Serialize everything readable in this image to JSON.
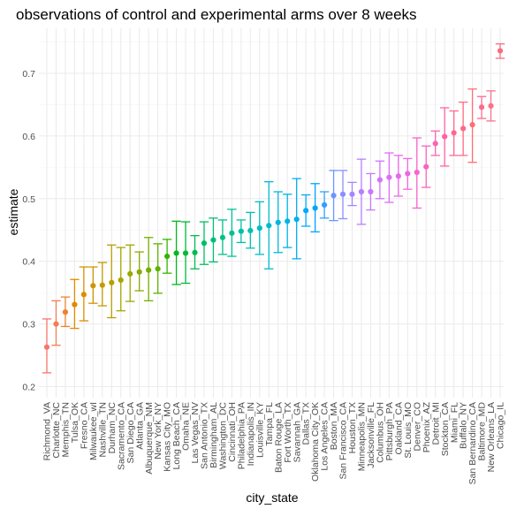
{
  "chart_data": {
    "type": "scatter",
    "subtype": "point-range with error bars",
    "title": "observations of control and experimental arms over 8 weeks",
    "xlabel": "city_state",
    "ylabel": "estimate",
    "ylim": [
      0.2,
      0.75
    ],
    "yticks": [
      "0.2",
      "0.3",
      "0.4",
      "0.5",
      "0.6",
      "0.7"
    ],
    "grid": true,
    "legend": "none",
    "theme": "minimal",
    "points": [
      {
        "city": "Richmond_VA",
        "estimate": 0.263,
        "lower": 0.222,
        "upper": 0.308,
        "color": "#F8766D"
      },
      {
        "city": "Charlotte_NC",
        "estimate": 0.3,
        "lower": 0.266,
        "upper": 0.337,
        "color": "#F27D52"
      },
      {
        "city": "Memphis_TN",
        "estimate": 0.319,
        "lower": 0.296,
        "upper": 0.343,
        "color": "#EA8331"
      },
      {
        "city": "Tulsa_OK",
        "estimate": 0.331,
        "lower": 0.293,
        "upper": 0.371,
        "color": "#E38900"
      },
      {
        "city": "Fresno_CA",
        "estimate": 0.347,
        "lower": 0.305,
        "upper": 0.391,
        "color": "#DA8F00"
      },
      {
        "city": "Milwaukee_wI",
        "estimate": 0.361,
        "lower": 0.333,
        "upper": 0.391,
        "color": "#CF9400"
      },
      {
        "city": "Nashville_TN",
        "estimate": 0.362,
        "lower": 0.329,
        "upper": 0.398,
        "color": "#C49A00"
      },
      {
        "city": "Durham_NC",
        "estimate": 0.366,
        "lower": 0.31,
        "upper": 0.426,
        "color": "#B79F00"
      },
      {
        "city": "Sacramento_CA",
        "estimate": 0.37,
        "lower": 0.321,
        "upper": 0.422,
        "color": "#A9A400"
      },
      {
        "city": "San Diego_CA",
        "estimate": 0.38,
        "lower": 0.336,
        "upper": 0.426,
        "color": "#9AA800"
      },
      {
        "city": "Atlanta_GA",
        "estimate": 0.383,
        "lower": 0.353,
        "upper": 0.415,
        "color": "#8AAB00"
      },
      {
        "city": "Albuquerque_NM",
        "estimate": 0.386,
        "lower": 0.337,
        "upper": 0.438,
        "color": "#75AF00"
      },
      {
        "city": "New York_NY",
        "estimate": 0.388,
        "lower": 0.349,
        "upper": 0.428,
        "color": "#5BB300"
      },
      {
        "city": "Kansas City_MO",
        "estimate": 0.408,
        "lower": 0.381,
        "upper": 0.435,
        "color": "#31B600"
      },
      {
        "city": "Long Beach_CA",
        "estimate": 0.413,
        "lower": 0.363,
        "upper": 0.464,
        "color": "#00B81F"
      },
      {
        "city": "Omaha_NE",
        "estimate": 0.413,
        "lower": 0.365,
        "upper": 0.463,
        "color": "#00BA38"
      },
      {
        "city": "Las Vegas_NV",
        "estimate": 0.414,
        "lower": 0.388,
        "upper": 0.441,
        "color": "#00BC4E"
      },
      {
        "city": "San Antonio_TX",
        "estimate": 0.429,
        "lower": 0.395,
        "upper": 0.463,
        "color": "#00BE62"
      },
      {
        "city": "Birmingham_AL",
        "estimate": 0.434,
        "lower": 0.399,
        "upper": 0.469,
        "color": "#00BF74"
      },
      {
        "city": "Washington_DC",
        "estimate": 0.438,
        "lower": 0.411,
        "upper": 0.466,
        "color": "#00C085"
      },
      {
        "city": "Cincinnati_OH",
        "estimate": 0.445,
        "lower": 0.408,
        "upper": 0.483,
        "color": "#00C096"
      },
      {
        "city": "Philadelphia_PA",
        "estimate": 0.448,
        "lower": 0.43,
        "upper": 0.466,
        "color": "#00C0A5"
      },
      {
        "city": "Indianapolis_IN",
        "estimate": 0.449,
        "lower": 0.421,
        "upper": 0.478,
        "color": "#00BFB4"
      },
      {
        "city": "Louisville_KY",
        "estimate": 0.453,
        "lower": 0.411,
        "upper": 0.495,
        "color": "#00BDC2"
      },
      {
        "city": "Tampa_FL",
        "estimate": 0.457,
        "lower": 0.388,
        "upper": 0.527,
        "color": "#00BBCF"
      },
      {
        "city": "Baton Rouge_LA",
        "estimate": 0.462,
        "lower": 0.414,
        "upper": 0.511,
        "color": "#00B8DC"
      },
      {
        "city": "Fort Worth_TX",
        "estimate": 0.464,
        "lower": 0.422,
        "upper": 0.507,
        "color": "#00B4E7"
      },
      {
        "city": "Savannah_GA",
        "estimate": 0.467,
        "lower": 0.404,
        "upper": 0.532,
        "color": "#00AFF1"
      },
      {
        "city": "Dallas_TX",
        "estimate": 0.481,
        "lower": 0.456,
        "upper": 0.506,
        "color": "#00AAFA"
      },
      {
        "city": "Oklahoma City_OK",
        "estimate": 0.485,
        "lower": 0.447,
        "upper": 0.524,
        "color": "#00A4FF"
      },
      {
        "city": "Los Angeles_CA",
        "estimate": 0.49,
        "lower": 0.469,
        "upper": 0.511,
        "color": "#339EFF"
      },
      {
        "city": "Boston_MA",
        "estimate": 0.505,
        "lower": 0.465,
        "upper": 0.545,
        "color": "#6B96FF"
      },
      {
        "city": "San Francisco_CA",
        "estimate": 0.507,
        "lower": 0.468,
        "upper": 0.545,
        "color": "#8C8EFF"
      },
      {
        "city": "Houston_TX",
        "estimate": 0.507,
        "lower": 0.489,
        "upper": 0.526,
        "color": "#A487FF"
      },
      {
        "city": "Minneapolis_MN",
        "estimate": 0.511,
        "lower": 0.459,
        "upper": 0.563,
        "color": "#B67FFF"
      },
      {
        "city": "Jacksonville_FL",
        "estimate": 0.511,
        "lower": 0.482,
        "upper": 0.54,
        "color": "#C678FF"
      },
      {
        "city": "Columbus_OH",
        "estimate": 0.53,
        "lower": 0.5,
        "upper": 0.56,
        "color": "#D372FF"
      },
      {
        "city": "Pittsburgh_PA",
        "estimate": 0.534,
        "lower": 0.494,
        "upper": 0.573,
        "color": "#DE6DF5"
      },
      {
        "city": "Oakland_CA",
        "estimate": 0.536,
        "lower": 0.504,
        "upper": 0.569,
        "color": "#E769EA"
      },
      {
        "city": "St. Louis_MO",
        "estimate": 0.54,
        "lower": 0.515,
        "upper": 0.564,
        "color": "#EF67DE"
      },
      {
        "city": "Denver_CO",
        "estimate": 0.542,
        "lower": 0.485,
        "upper": 0.597,
        "color": "#F564D0"
      },
      {
        "city": "Phoenix_AZ",
        "estimate": 0.551,
        "lower": 0.518,
        "upper": 0.584,
        "color": "#FA62C1"
      },
      {
        "city": "Detroit_MI",
        "estimate": 0.588,
        "lower": 0.569,
        "upper": 0.608,
        "color": "#FD62B2"
      },
      {
        "city": "Stockton_CA",
        "estimate": 0.599,
        "lower": 0.552,
        "upper": 0.645,
        "color": "#FF63A2"
      },
      {
        "city": "Miami_FL",
        "estimate": 0.605,
        "lower": 0.569,
        "upper": 0.64,
        "color": "#FF6692"
      },
      {
        "city": "Buffalo_NY",
        "estimate": 0.612,
        "lower": 0.569,
        "upper": 0.654,
        "color": "#FF6A82"
      },
      {
        "city": "San Bernardino_CA",
        "estimate": 0.618,
        "lower": 0.558,
        "upper": 0.675,
        "color": "#FD6E73"
      },
      {
        "city": "Baltimore_MD",
        "estimate": 0.646,
        "lower": 0.628,
        "upper": 0.663,
        "color": "#FC6B8C"
      },
      {
        "city": "New Orleans_LA",
        "estimate": 0.648,
        "lower": 0.624,
        "upper": 0.672,
        "color": "#F9718A"
      },
      {
        "city": "Chicago_IL",
        "estimate": 0.736,
        "lower": 0.724,
        "upper": 0.747,
        "color": "#F86D80"
      }
    ]
  }
}
